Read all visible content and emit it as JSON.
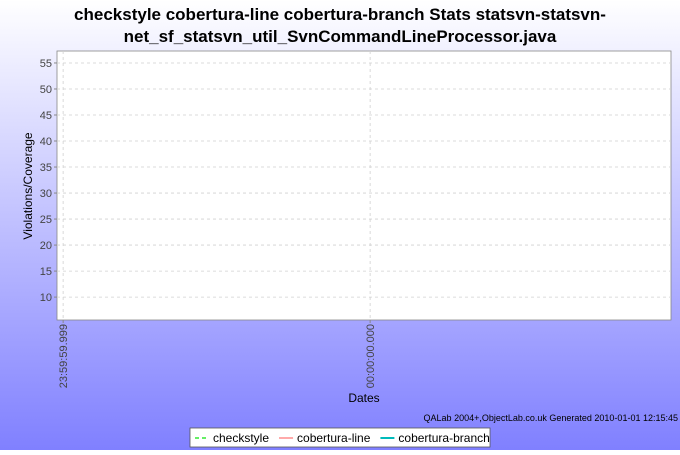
{
  "chart_data": {
    "type": "line",
    "title": "checkstyle cobertura-line cobertura-branch  Stats statsvn-statsvn-net_sf_statsvn_util_SvnCommandLineProcessor.java",
    "x_label": "Dates",
    "y_label": "Violations/Coverage",
    "footer": "QALab 2004+,ObjectLab.co.uk Generated 2010-01-01 12:15:45",
    "x": [],
    "series": [
      {
        "name": "checkstyle",
        "color": "#66ee66",
        "dashed": true,
        "values": []
      },
      {
        "name": "cobertura-line",
        "color": "#ffaaaa",
        "dashed": false,
        "values": []
      },
      {
        "name": "cobertura-branch",
        "color": "#00bbbb",
        "dashed": false,
        "values": []
      }
    ],
    "xlim": [
      -1.02,
      0.98
    ],
    "xticks": [
      {
        "value": -1,
        "label": "23:59:59.999"
      },
      {
        "value": 0,
        "label": "00:00:00.000"
      }
    ],
    "ylim": [
      5.6,
      57.3
    ],
    "yticks": [
      10,
      15,
      20,
      25,
      30,
      35,
      40,
      45,
      50,
      55
    ],
    "grid": true
  }
}
